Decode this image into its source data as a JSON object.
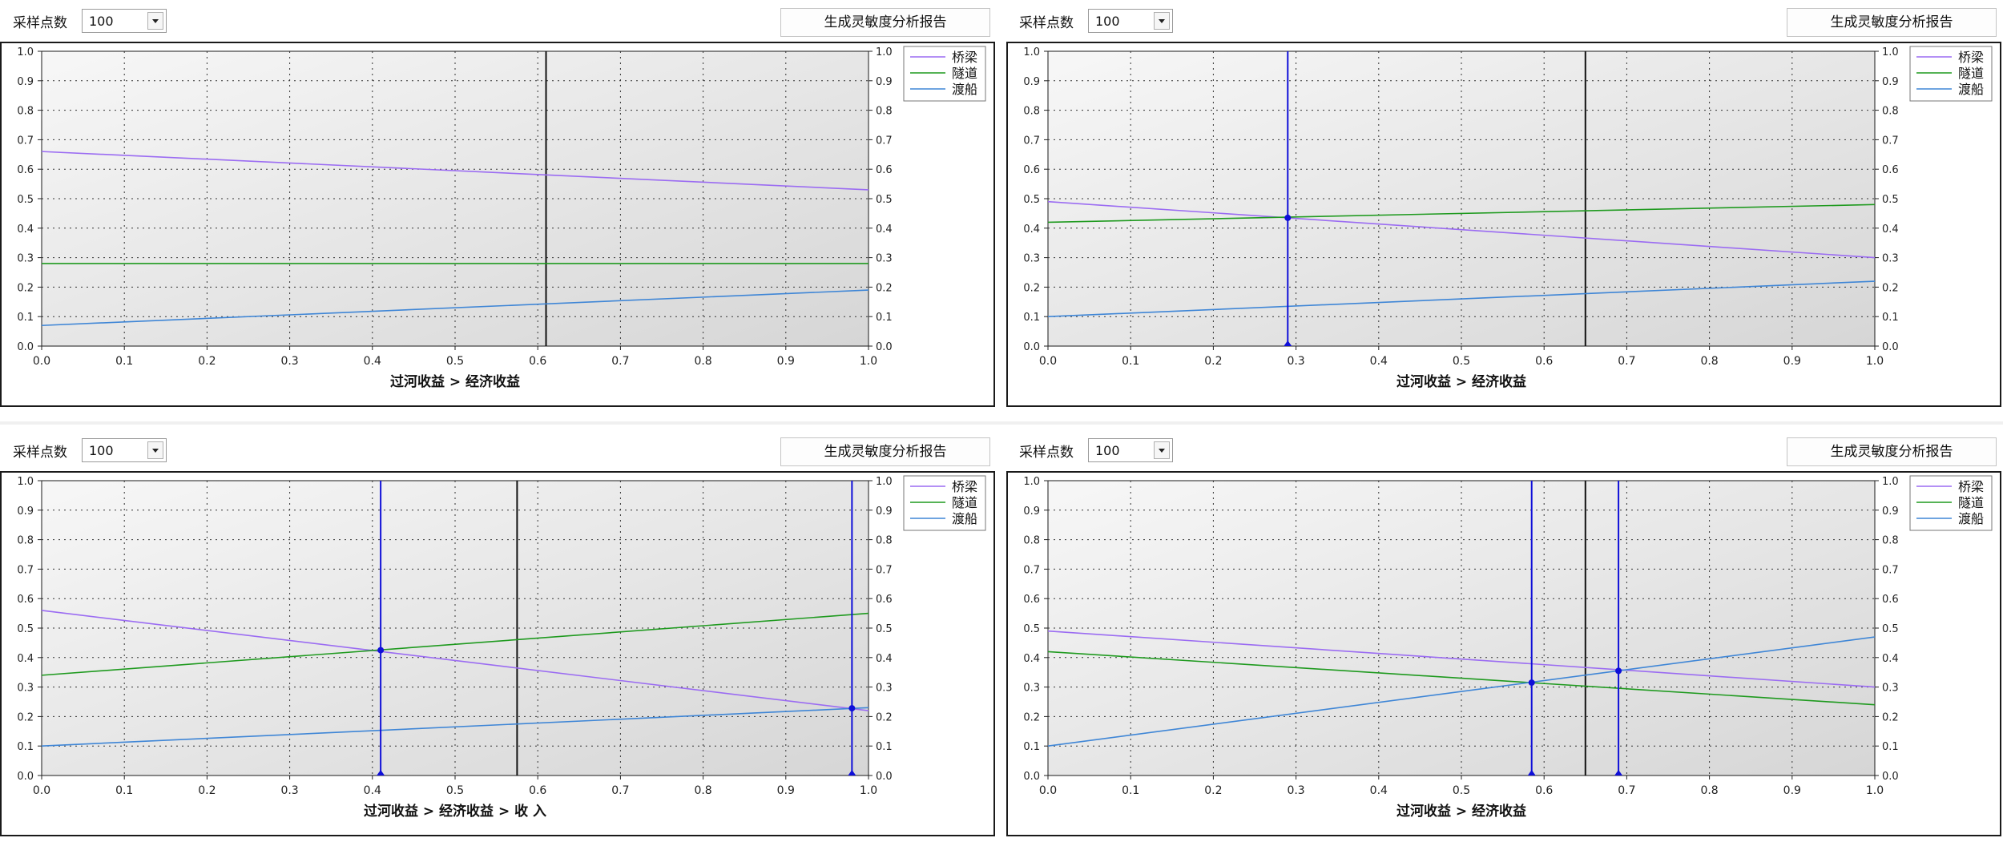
{
  "toolbar": {
    "sample_label": "采样点数",
    "sample_value": "100",
    "report_button": "生成灵敏度分析报告"
  },
  "legend_colors": {
    "桥梁": "#9b6cf2",
    "隧道": "#1f9a1f",
    "渡船": "#3f86d6"
  },
  "marker_color": "#1010d8",
  "chart_data": [
    {
      "type": "line",
      "xlabel": "过河收益 > 经济收益",
      "xlim": [
        0,
        1
      ],
      "ylim": [
        0,
        1
      ],
      "xticks": [
        "0.0",
        "0.1",
        "0.2",
        "0.3",
        "0.4",
        "0.5",
        "0.6",
        "0.7",
        "0.8",
        "0.9",
        "1.0"
      ],
      "yticks": [
        "0.0",
        "0.1",
        "0.2",
        "0.3",
        "0.4",
        "0.5",
        "0.6",
        "0.7",
        "0.8",
        "0.9",
        "1.0"
      ],
      "legend": "top-right",
      "grid": true,
      "current_value": 0.61,
      "series": [
        {
          "name": "桥梁",
          "x": [
            0,
            1
          ],
          "y": [
            0.66,
            0.53
          ]
        },
        {
          "name": "隧道",
          "x": [
            0,
            1
          ],
          "y": [
            0.28,
            0.28
          ]
        },
        {
          "name": "渡船",
          "x": [
            0,
            1
          ],
          "y": [
            0.07,
            0.19
          ]
        }
      ],
      "intersections": []
    },
    {
      "type": "line",
      "xlabel": "过河收益 > 经济收益",
      "xlim": [
        0,
        1
      ],
      "ylim": [
        0,
        1
      ],
      "xticks": [
        "0.0",
        "0.1",
        "0.2",
        "0.3",
        "0.4",
        "0.5",
        "0.6",
        "0.7",
        "0.8",
        "0.9",
        "1.0"
      ],
      "yticks": [
        "0.0",
        "0.1",
        "0.2",
        "0.3",
        "0.4",
        "0.5",
        "0.6",
        "0.7",
        "0.8",
        "0.9",
        "1.0"
      ],
      "legend": "top-right",
      "grid": true,
      "current_value": 0.65,
      "series": [
        {
          "name": "桥梁",
          "x": [
            0,
            1
          ],
          "y": [
            0.49,
            0.3
          ]
        },
        {
          "name": "隧道",
          "x": [
            0,
            1
          ],
          "y": [
            0.42,
            0.48
          ]
        },
        {
          "name": "渡船",
          "x": [
            0,
            1
          ],
          "y": [
            0.1,
            0.22
          ]
        }
      ],
      "intersections": [
        {
          "x": 0.29,
          "y": 0.435
        }
      ]
    },
    {
      "type": "line",
      "xlabel": "过河收益 > 经济收益 > 收 入",
      "xlim": [
        0,
        1
      ],
      "ylim": [
        0,
        1
      ],
      "xticks": [
        "0.0",
        "0.1",
        "0.2",
        "0.3",
        "0.4",
        "0.5",
        "0.6",
        "0.7",
        "0.8",
        "0.9",
        "1.0"
      ],
      "yticks": [
        "0.0",
        "0.1",
        "0.2",
        "0.3",
        "0.4",
        "0.5",
        "0.6",
        "0.7",
        "0.8",
        "0.9",
        "1.0"
      ],
      "legend": "top-right",
      "grid": true,
      "current_value": 0.575,
      "series": [
        {
          "name": "桥梁",
          "x": [
            0,
            1
          ],
          "y": [
            0.56,
            0.22
          ]
        },
        {
          "name": "隧道",
          "x": [
            0,
            1
          ],
          "y": [
            0.34,
            0.55
          ]
        },
        {
          "name": "渡船",
          "x": [
            0,
            1
          ],
          "y": [
            0.1,
            0.23
          ]
        }
      ],
      "intersections": [
        {
          "x": 0.41,
          "y": 0.425
        },
        {
          "x": 0.98,
          "y": 0.228
        }
      ]
    },
    {
      "type": "line",
      "xlabel": "过河收益 > 经济收益",
      "xlim": [
        0,
        1
      ],
      "ylim": [
        0,
        1
      ],
      "xticks": [
        "0.0",
        "0.1",
        "0.2",
        "0.3",
        "0.4",
        "0.5",
        "0.6",
        "0.7",
        "0.8",
        "0.9",
        "1.0"
      ],
      "yticks": [
        "0.0",
        "0.1",
        "0.2",
        "0.3",
        "0.4",
        "0.5",
        "0.6",
        "0.7",
        "0.8",
        "0.9",
        "1.0"
      ],
      "legend": "top-right",
      "grid": true,
      "current_value": 0.65,
      "series": [
        {
          "name": "桥梁",
          "x": [
            0,
            1
          ],
          "y": [
            0.49,
            0.3
          ]
        },
        {
          "name": "隧道",
          "x": [
            0,
            1
          ],
          "y": [
            0.42,
            0.24
          ]
        },
        {
          "name": "渡船",
          "x": [
            0,
            1
          ],
          "y": [
            0.1,
            0.47
          ]
        }
      ],
      "intersections": [
        {
          "x": 0.585,
          "y": 0.315
        },
        {
          "x": 0.69,
          "y": 0.355
        }
      ]
    }
  ]
}
